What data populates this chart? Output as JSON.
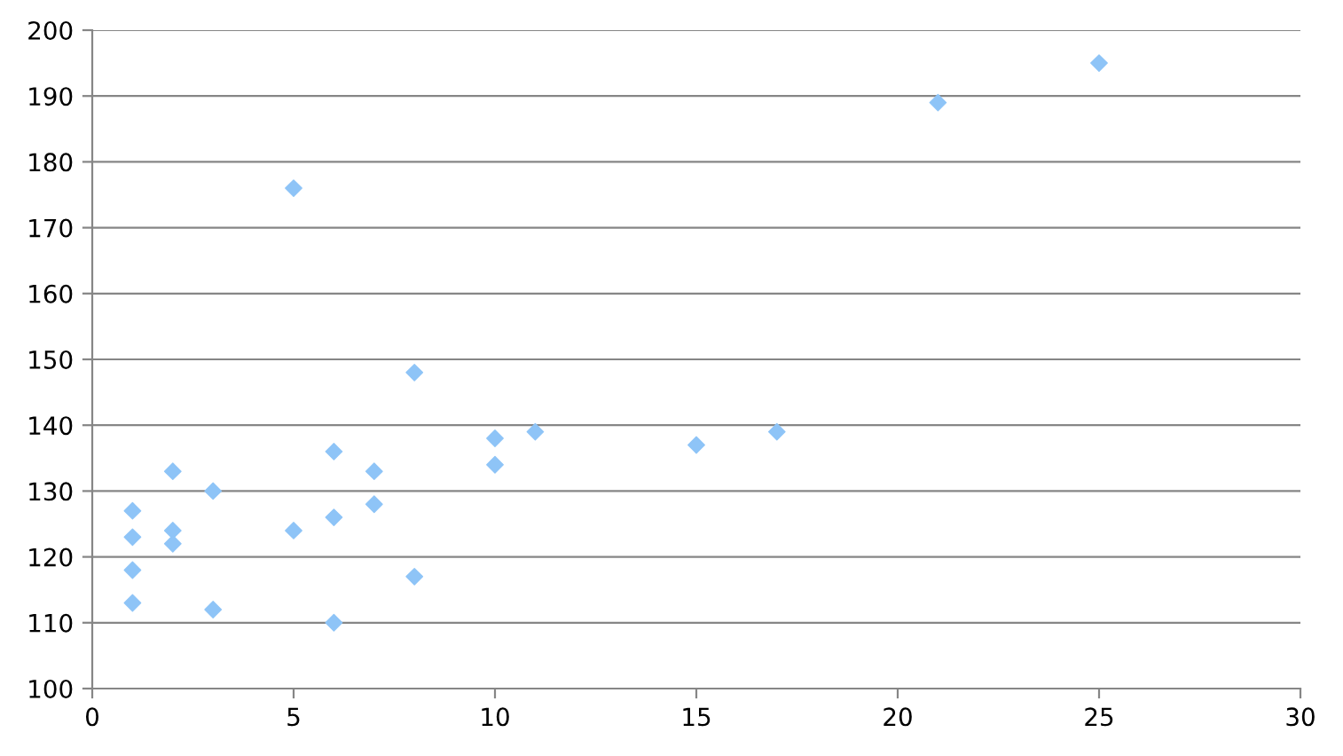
{
  "chart_data": {
    "type": "scatter",
    "marker": "diamond",
    "grid": "y",
    "x": [
      1,
      1,
      1,
      1,
      2,
      2,
      2,
      3,
      3,
      5,
      5,
      6,
      6,
      6,
      7,
      7,
      8,
      8,
      10,
      10,
      11,
      15,
      17,
      21,
      25
    ],
    "series": [
      {
        "color": "#8ec4f7",
        "values": [
          127,
          123,
          118,
          113,
          133,
          124,
          122,
          130,
          112,
          176,
          124,
          136,
          126,
          110,
          133,
          128,
          148,
          117,
          138,
          134,
          139,
          137,
          139,
          189,
          195
        ]
      }
    ],
    "xlim": [
      0,
      30
    ],
    "xticks": [
      0,
      5,
      10,
      15,
      20,
      25,
      30
    ],
    "ylim": [
      100,
      200
    ],
    "yticks": [
      100,
      110,
      120,
      130,
      140,
      150,
      160,
      170,
      180,
      190,
      200
    ]
  }
}
